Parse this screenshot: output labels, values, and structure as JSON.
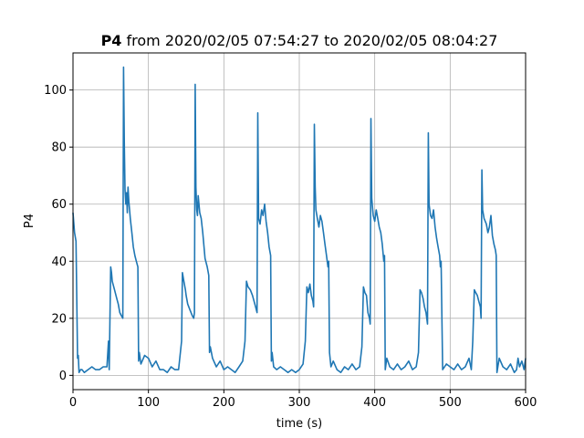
{
  "chart_data": {
    "type": "line",
    "title_bold": "P4",
    "title_rest": " from 2020/02/05 07:54:27 to 2020/02/05 08:04:27",
    "xlabel": "time (s)",
    "ylabel": "P4",
    "xlim": [
      0,
      600
    ],
    "ylim": [
      -5,
      113
    ],
    "xticks": [
      0,
      100,
      200,
      300,
      400,
      500,
      600
    ],
    "yticks": [
      0,
      20,
      40,
      60,
      80,
      100
    ],
    "grid": true,
    "line_color": "#1f77b4",
    "series": [
      {
        "x": [
          0,
          2,
          4,
          6,
          7,
          8,
          10,
          12,
          15,
          20,
          25,
          30,
          35,
          40,
          45,
          47,
          48,
          50,
          51,
          52,
          55,
          58,
          60,
          62,
          64,
          66,
          67,
          68,
          69,
          70,
          71,
          72,
          73,
          74,
          75,
          76,
          78,
          80,
          82,
          84,
          86,
          87,
          88,
          90,
          95,
          100,
          105,
          110,
          115,
          120,
          125,
          130,
          135,
          140,
          144,
          145,
          147,
          149,
          150,
          152,
          155,
          158,
          160,
          161,
          162,
          163,
          164,
          165,
          166,
          168,
          170,
          172,
          175,
          178,
          180,
          181,
          182,
          185,
          190,
          195,
          200,
          205,
          210,
          215,
          220,
          225,
          228,
          230,
          232,
          235,
          238,
          240,
          242,
          244,
          245,
          246,
          248,
          250,
          252,
          254,
          256,
          258,
          260,
          262,
          263,
          264,
          266,
          270,
          275,
          280,
          285,
          290,
          295,
          300,
          305,
          308,
          310,
          312,
          314,
          316,
          318,
          319,
          320,
          321,
          322,
          324,
          326,
          328,
          330,
          332,
          334,
          336,
          338,
          339,
          340,
          342,
          345,
          350,
          355,
          360,
          365,
          370,
          375,
          380,
          383,
          385,
          387,
          389,
          391,
          393,
          394,
          395,
          396,
          398,
          400,
          402,
          404,
          406,
          408,
          410,
          412,
          413,
          414,
          416,
          420,
          425,
          430,
          435,
          440,
          445,
          450,
          455,
          458,
          460,
          462,
          464,
          466,
          468,
          469,
          470,
          471,
          472,
          474,
          476,
          478,
          480,
          482,
          484,
          486,
          487,
          488,
          490,
          495,
          500,
          505,
          510,
          515,
          520,
          525,
          528,
          530,
          532,
          534,
          536,
          538,
          540,
          541,
          542,
          543,
          545,
          548,
          550,
          552,
          554,
          556,
          558,
          560,
          561,
          562,
          565,
          570,
          575,
          580,
          585,
          588,
          590,
          592,
          595,
          598,
          600
        ],
        "y": [
          57,
          50,
          47,
          6,
          7,
          1,
          2,
          2,
          1,
          2,
          3,
          2,
          2,
          3,
          3,
          12,
          2,
          38,
          36,
          33,
          30,
          27,
          25,
          22,
          21,
          20,
          108,
          82,
          65,
          60,
          64,
          57,
          66,
          61,
          58,
          55,
          50,
          45,
          42,
          40,
          38,
          5,
          8,
          4,
          7,
          6,
          3,
          5,
          2,
          2,
          1,
          3,
          2,
          2,
          12,
          36,
          33,
          30,
          28,
          25,
          23,
          21,
          20,
          22,
          102,
          66,
          58,
          56,
          63,
          57,
          55,
          50,
          41,
          38,
          35,
          8,
          10,
          6,
          3,
          5,
          2,
          3,
          2,
          1,
          3,
          5,
          12,
          33,
          31,
          30,
          28,
          26,
          24,
          22,
          92,
          55,
          53,
          58,
          56,
          60,
          54,
          50,
          45,
          42,
          5,
          8,
          3,
          2,
          3,
          2,
          1,
          2,
          1,
          2,
          4,
          12,
          31,
          29,
          32,
          28,
          26,
          24,
          88,
          66,
          58,
          55,
          52,
          56,
          54,
          50,
          46,
          42,
          38,
          40,
          8,
          3,
          5,
          2,
          1,
          3,
          2,
          4,
          2,
          3,
          10,
          31,
          29,
          28,
          22,
          20,
          18,
          90,
          62,
          56,
          54,
          58,
          55,
          52,
          50,
          46,
          40,
          42,
          2,
          6,
          3,
          2,
          4,
          2,
          3,
          5,
          2,
          3,
          8,
          30,
          29,
          27,
          24,
          22,
          20,
          18,
          85,
          60,
          56,
          55,
          58,
          52,
          48,
          45,
          42,
          38,
          40,
          2,
          4,
          3,
          2,
          4,
          2,
          3,
          6,
          2,
          12,
          30,
          29,
          28,
          26,
          24,
          20,
          72,
          58,
          55,
          53,
          50,
          52,
          56,
          49,
          46,
          44,
          42,
          1,
          6,
          3,
          2,
          4,
          1,
          2,
          6,
          3,
          5,
          2,
          6
        ]
      }
    ]
  }
}
